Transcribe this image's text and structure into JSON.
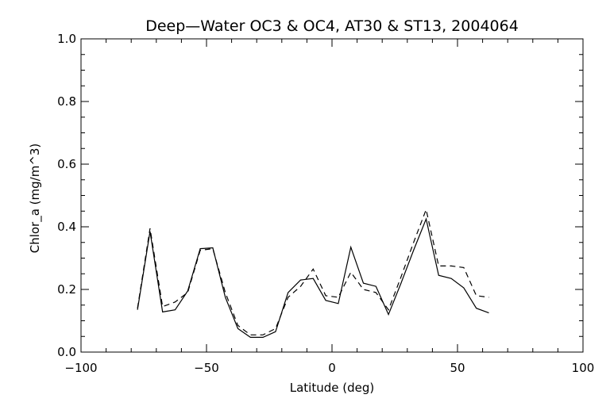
{
  "chart_data": {
    "type": "line",
    "title": "Deep—Water OC3 & OC4, AT30 & ST13, 2004064",
    "xlabel": "Latitude (deg)",
    "ylabel": "Chlor_a (mg/m^3)",
    "xlim": [
      -100,
      100
    ],
    "ylim": [
      0.0,
      1.0
    ],
    "xticks": [
      -100,
      -50,
      0,
      50,
      100
    ],
    "xtick_labels": [
      "−100",
      "−50",
      "0",
      "50",
      "100"
    ],
    "yticks": [
      0.0,
      0.2,
      0.4,
      0.6,
      0.8,
      1.0
    ],
    "ytick_labels": [
      "0.0",
      "0.2",
      "0.4",
      "0.6",
      "0.8",
      "1.0"
    ],
    "grid": false,
    "series": [
      {
        "style": "solid",
        "x": [
          -77.5,
          -72.5,
          -67.5,
          -62.5,
          -57.5,
          -52.5,
          -47.5,
          -42.5,
          -37.5,
          -32.5,
          -27.5,
          -22.5,
          -17.5,
          -12.5,
          -7.5,
          -2.5,
          2.5,
          7.5,
          12.5,
          17.5,
          22.5,
          27.5,
          32.5,
          37.5,
          42.5,
          47.5,
          52.5,
          57.5,
          62.5
        ],
        "y": [
          0.135,
          0.385,
          0.128,
          0.135,
          0.195,
          0.33,
          0.333,
          0.175,
          0.075,
          0.047,
          0.047,
          0.065,
          0.19,
          0.23,
          0.235,
          0.165,
          0.155,
          0.335,
          0.22,
          0.21,
          0.12,
          0.22,
          0.325,
          0.425,
          0.245,
          0.235,
          0.205,
          0.14,
          0.125
        ]
      },
      {
        "style": "dashed",
        "x": [
          -77.5,
          -72.5,
          -67.5,
          -62.5,
          -57.5,
          -52.5,
          -47.5,
          -42.5,
          -37.5,
          -32.5,
          -27.5,
          -22.5,
          -17.5,
          -12.5,
          -7.5,
          -2.5,
          2.5,
          7.5,
          12.5,
          17.5,
          22.5,
          27.5,
          32.5,
          37.5,
          42.5,
          47.5,
          52.5,
          57.5,
          62.5
        ],
        "y": [
          0.14,
          0.395,
          0.145,
          0.16,
          0.19,
          0.325,
          0.33,
          0.19,
          0.085,
          0.055,
          0.055,
          0.075,
          0.175,
          0.21,
          0.265,
          0.18,
          0.175,
          0.255,
          0.2,
          0.19,
          0.135,
          0.24,
          0.35,
          0.455,
          0.275,
          0.275,
          0.27,
          0.18,
          0.175
        ]
      }
    ]
  }
}
